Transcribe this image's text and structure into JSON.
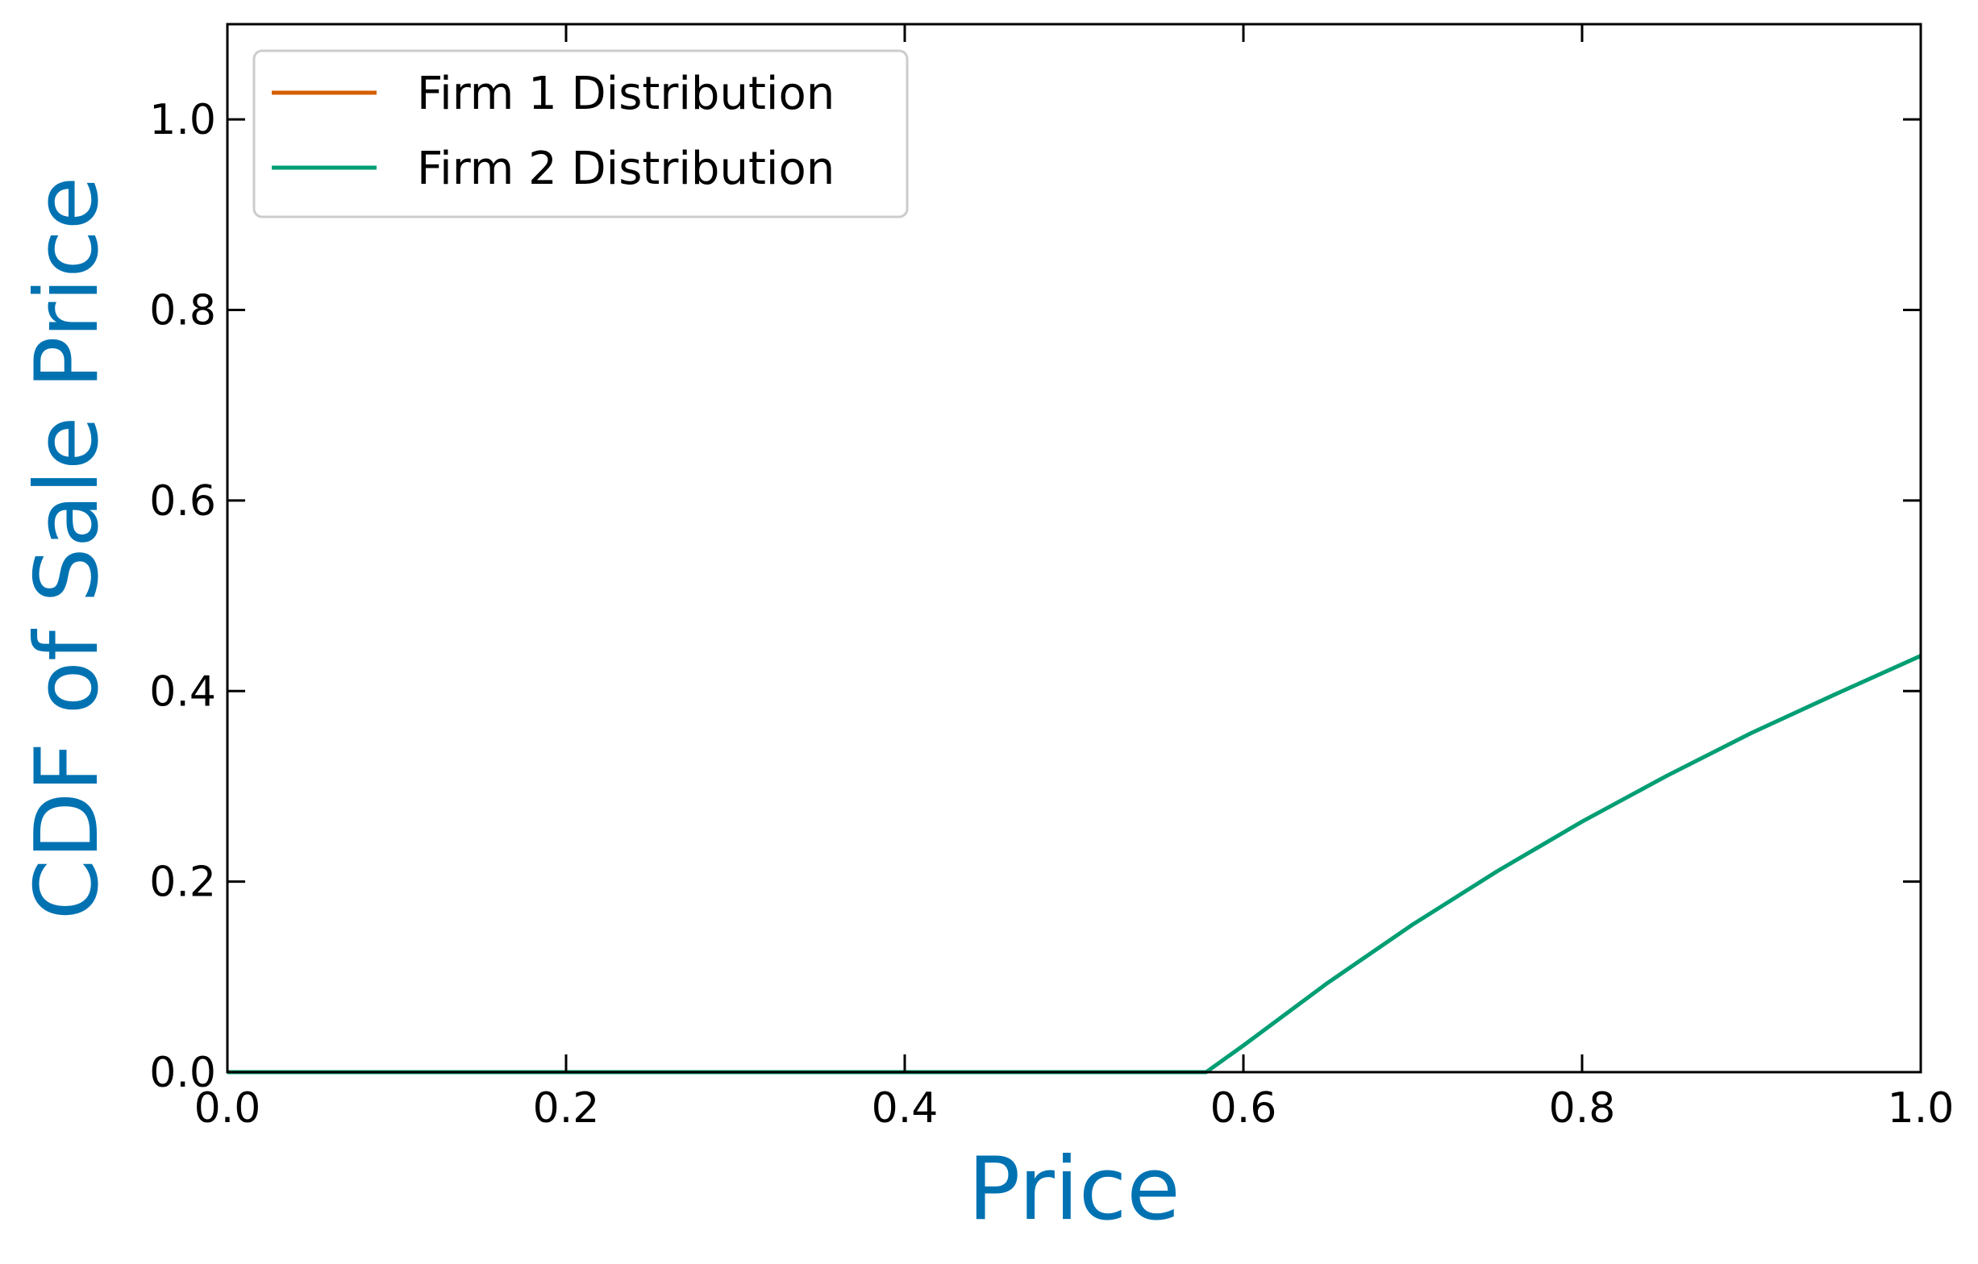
{
  "chart_data": {
    "type": "line",
    "title": "",
    "xlabel": "Price",
    "ylabel": "CDF of Sale Price",
    "label_color": "#0072b2",
    "xlim": [
      0.0,
      1.0
    ],
    "ylim": [
      0.0,
      1.1
    ],
    "x_ticks": [
      0.0,
      0.2,
      0.4,
      0.6,
      0.8,
      1.0
    ],
    "y_ticks": [
      0.0,
      0.2,
      0.4,
      0.6,
      0.8,
      1.0
    ],
    "x_tick_labels": [
      "0.0",
      "0.2",
      "0.4",
      "0.6",
      "0.8",
      "1.0"
    ],
    "y_tick_labels": [
      "0.0",
      "0.2",
      "0.4",
      "0.6",
      "0.8",
      "1.0"
    ],
    "grid": false,
    "legend_position": "top-left",
    "series": [
      {
        "name": "Firm 1 Distribution",
        "color": "#d55e00",
        "x": [
          0.0,
          0.578
        ],
        "y": [
          0.0,
          0.0
        ]
      },
      {
        "name": "Firm 2 Distribution",
        "color": "#009e73",
        "x": [
          0.0,
          0.578,
          0.6,
          0.65,
          0.7,
          0.75,
          0.8,
          0.85,
          0.9,
          0.95,
          1.0
        ],
        "y": [
          0.0,
          0.0,
          0.028,
          0.094,
          0.155,
          0.211,
          0.263,
          0.311,
          0.356,
          0.397,
          0.437
        ]
      }
    ]
  }
}
